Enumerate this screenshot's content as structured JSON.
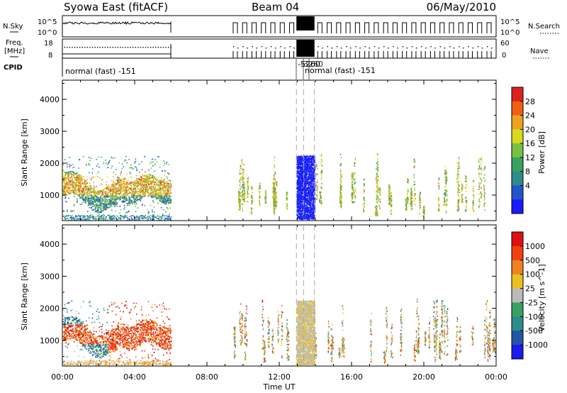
{
  "header": {
    "station": "Syowa East (fitACF)",
    "beam": "Beam 04",
    "date": "06/May/2010"
  },
  "left_labels": {
    "nsky": "N.Sky",
    "freq_line1": "Freq.",
    "freq_line2": "[MHz]",
    "cpid": "CPID"
  },
  "right_labels": {
    "nsearch": "N.Search",
    "nave": "Nave"
  },
  "strip_ticks": {
    "nsky_left": [
      "10^5",
      "10^0"
    ],
    "nsky_right": [
      "10^5",
      "10^0"
    ],
    "freq_left": [
      "18",
      "8"
    ],
    "freq_right": [
      "60",
      "0"
    ]
  },
  "cpid": {
    "main": "normal (fast) -151",
    "overlap_a": "-5260",
    "overlap_b": "-3260",
    "overlap_c": "normal (fast) -151"
  },
  "xaxis": {
    "title": "Time UT",
    "ticks": [
      "00:00",
      "04:00",
      "08:00",
      "12:00",
      "16:00",
      "20:00",
      "00:00"
    ]
  },
  "chart_data": [
    {
      "type": "heatmap",
      "name": "power",
      "ylabel": "Slant Range [km]",
      "xlim": [
        0,
        24
      ],
      "ylim": [
        200,
        4600
      ],
      "yticks": [
        1000,
        2000,
        3000,
        4000
      ],
      "colorbar": {
        "label": "Power [dB]",
        "ticks": [
          "28",
          "24",
          "20",
          "16",
          "12",
          "8",
          "4"
        ],
        "range": [
          0,
          32
        ]
      },
      "blocks": [
        {
          "t0": 0.0,
          "t1": 6.0,
          "r0": 200,
          "r1": 2300
        },
        {
          "t0": 9.4,
          "t1": 12.9,
          "r0": 200,
          "r1": 2300
        },
        {
          "t0": 12.95,
          "t1": 13.95,
          "r0": 200,
          "r1": 2260,
          "fill": "solid"
        },
        {
          "t0": 13.95,
          "t1": 24.0,
          "r0": 200,
          "r1": 2300
        }
      ]
    },
    {
      "type": "heatmap",
      "name": "velocity",
      "ylabel": "Slant Range [km]",
      "xlim": [
        0,
        24
      ],
      "ylim": [
        200,
        4600
      ],
      "yticks": [
        1000,
        2000,
        3000,
        4000
      ],
      "colorbar": {
        "label": "Velocity [m s^-1]",
        "ticks": [
          "1000",
          "500",
          "100",
          "25",
          "-25",
          "-100",
          "-500",
          "-1000"
        ],
        "range": [
          -1000,
          1000
        ]
      },
      "blocks": [
        {
          "t0": 0.0,
          "t1": 6.0,
          "r0": 200,
          "r1": 2300
        },
        {
          "t0": 9.4,
          "t1": 12.9,
          "r0": 200,
          "r1": 2300
        },
        {
          "t0": 12.95,
          "t1": 13.95,
          "r0": 200,
          "r1": 2260,
          "fill": "solid"
        },
        {
          "t0": 13.95,
          "t1": 24.0,
          "r0": 200,
          "r1": 2300
        }
      ]
    }
  ],
  "colors": {
    "power": [
      "#1a1aff",
      "#2255cc",
      "#2e8b8b",
      "#3aa060",
      "#77c040",
      "#d8d820",
      "#f0a020",
      "#f06010",
      "#e02020"
    ],
    "velocity": [
      "#1a1aee",
      "#2255aa",
      "#2e8b8b",
      "#3aa060",
      "#bbbbbb",
      "#e8c020",
      "#f08020",
      "#f04010",
      "#e01010"
    ]
  }
}
